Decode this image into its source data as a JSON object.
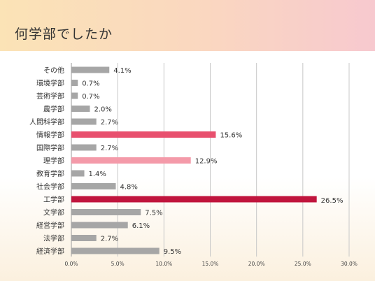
{
  "header": {
    "title": "何学部でしたか"
  },
  "colors": {
    "default_bar": "#a6a6a6",
    "highlight_dark": "#c0143c",
    "highlight_mid": "#e8506e",
    "highlight_light": "#f49aa9",
    "grid": "#c8c8c8"
  },
  "chart_data": {
    "type": "bar",
    "orientation": "horizontal",
    "categories": [
      "その他",
      "環境学部",
      "芸術学部",
      "農学部",
      "人間科学部",
      "情報学部",
      "国際学部",
      "理学部",
      "教育学部",
      "社会学部",
      "工学部",
      "文学部",
      "経営学部",
      "法学部",
      "経済学部"
    ],
    "values": [
      4.1,
      0.7,
      0.7,
      2.0,
      2.7,
      15.6,
      2.7,
      12.9,
      1.4,
      4.8,
      26.5,
      7.5,
      6.1,
      2.7,
      9.5
    ],
    "value_labels": [
      "4.1%",
      "0.7%",
      "0.7%",
      "2.0%",
      "2.7%",
      "15.6%",
      "2.7%",
      "12.9%",
      "1.4%",
      "4.8%",
      "26.5%",
      "7.5%",
      "6.1%",
      "2.7%",
      "9.5%"
    ],
    "highlight": {
      "工学部": "dark",
      "情報学部": "mid",
      "理学部": "light"
    },
    "xlim": [
      0,
      30
    ],
    "xticks": [
      0,
      5,
      10,
      15,
      20,
      25,
      30
    ],
    "xtick_labels": [
      "0.0%",
      "5.0%",
      "10.0%",
      "15.0%",
      "20.0%",
      "25.0%",
      "30.0%"
    ],
    "grid": true,
    "title": "",
    "xlabel": "",
    "ylabel": ""
  }
}
